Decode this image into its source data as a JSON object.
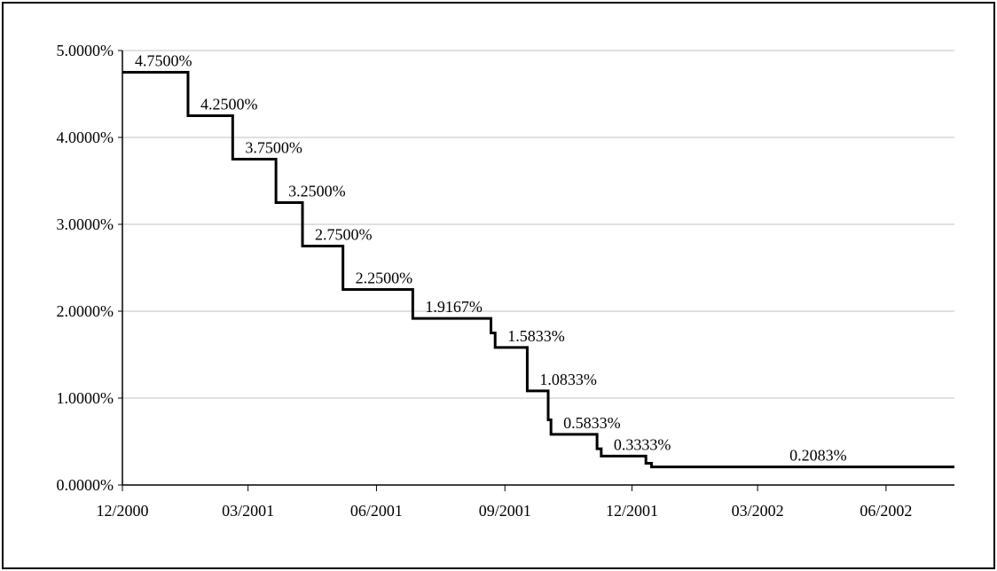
{
  "chart_data": {
    "type": "line",
    "title": "",
    "xlabel": "",
    "ylabel": "",
    "step": true,
    "grid": true,
    "legend": "none",
    "line_color": "#000000",
    "ylim": [
      0,
      0.05
    ],
    "xlim": [
      "2000-12-01",
      "2002-07-20"
    ],
    "x_ticks": [
      "12/2000",
      "03/2001",
      "06/2001",
      "09/2001",
      "12/2001",
      "03/2002",
      "06/2002"
    ],
    "x_tick_dates": [
      "2000-12-01",
      "2001-03-01",
      "2001-06-01",
      "2001-09-01",
      "2001-12-01",
      "2002-03-01",
      "2002-06-01"
    ],
    "y_ticks": [
      "0.0000%",
      "1.0000%",
      "2.0000%",
      "3.0000%",
      "4.0000%",
      "5.0000%"
    ],
    "y_tick_values": [
      0,
      0.01,
      0.02,
      0.03,
      0.04,
      0.05
    ],
    "series": [
      {
        "points": [
          [
            "2000-12-01",
            0.0475
          ],
          [
            "2001-01-17",
            0.0425
          ],
          [
            "2001-02-18",
            0.0375
          ],
          [
            "2001-03-21",
            0.0325
          ],
          [
            "2001-04-09",
            0.0275
          ],
          [
            "2001-05-08",
            0.0225
          ],
          [
            "2001-06-27",
            0.019167
          ],
          [
            "2001-08-22",
            0.0175
          ],
          [
            "2001-08-25",
            0.015833
          ],
          [
            "2001-09-17",
            0.010833
          ],
          [
            "2001-10-02",
            0.0075
          ],
          [
            "2001-10-04",
            0.005833
          ],
          [
            "2001-11-06",
            0.004167
          ],
          [
            "2001-11-09",
            0.003333
          ],
          [
            "2001-12-11",
            0.0025
          ],
          [
            "2001-12-15",
            0.002083
          ],
          [
            "2002-07-20",
            0.002083
          ]
        ]
      }
    ],
    "data_labels": [
      {
        "date": "2000-12-01",
        "value": 0.0475,
        "text": "4.7500%"
      },
      {
        "date": "2001-01-17",
        "value": 0.0425,
        "text": "4.2500%"
      },
      {
        "date": "2001-02-18",
        "value": 0.0375,
        "text": "3.7500%"
      },
      {
        "date": "2001-03-21",
        "value": 0.0325,
        "text": "3.2500%"
      },
      {
        "date": "2001-04-09",
        "value": 0.0275,
        "text": "2.7500%"
      },
      {
        "date": "2001-05-08",
        "value": 0.0225,
        "text": "2.2500%"
      },
      {
        "date": "2001-06-27",
        "value": 0.019167,
        "text": "1.9167%"
      },
      {
        "date": "2001-08-25",
        "value": 0.015833,
        "text": "1.5833%"
      },
      {
        "date": "2001-09-17",
        "value": 0.010833,
        "text": "1.0833%"
      },
      {
        "date": "2001-10-04",
        "value": 0.005833,
        "text": "0.5833%"
      },
      {
        "date": "2001-11-09",
        "value": 0.003333,
        "text": "0.3333%"
      },
      {
        "date": "2002-03-15",
        "value": 0.002083,
        "text": "0.2083%"
      }
    ]
  }
}
